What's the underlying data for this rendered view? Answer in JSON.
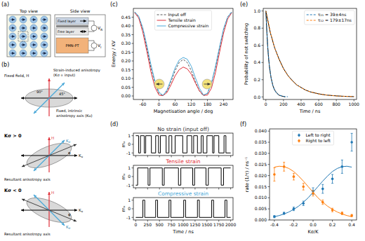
{
  "panel_labels": [
    "(a)",
    "(b)",
    "(c)",
    "(d)",
    "(e)",
    "(f)"
  ],
  "diagrams": {
    "a": {
      "top_view": "Top view",
      "side_view": "Side view",
      "layers": [
        "Fixed layer",
        "Free layer",
        "PMN-PT"
      ],
      "voltages": [
        "VR",
        "VI"
      ]
    },
    "b": {
      "fixed_field": "Fixed field, H",
      "strain_axis": [
        "Strain-induced anisotropy",
        "(Kσ ∝ input)"
      ],
      "angles": [
        "90°",
        "45°"
      ],
      "intrinsic_axis": [
        "Fixed, intrinsic",
        "anisotropy axis (Ku)"
      ],
      "cases": [
        {
          "label": "Kσ > 0",
          "field": "H",
          "strain": "Kσ",
          "intrinsic": "Ku",
          "resultant": "Resultant anisotropy axis",
          "angle": "φ"
        },
        {
          "label": "Kσ < 0",
          "field": "H",
          "strain": "Kσ",
          "intrinsic": "Ku",
          "resultant": "Resultant anisotropy axis",
          "angle": "φ"
        }
      ]
    }
  },
  "chart_data": [
    {
      "type": "line",
      "x_label": "Magnetisation angle / deg",
      "y_label": "Energy / KV",
      "x": [
        -90,
        -75,
        -60,
        -45,
        -30,
        -15,
        0,
        15,
        30,
        45,
        60,
        75,
        90,
        105,
        120,
        135,
        150,
        165,
        180,
        195,
        210,
        225,
        240,
        255,
        270
      ],
      "xlim": [
        -95,
        275
      ],
      "xticks": [
        -60,
        0,
        60,
        120,
        180,
        240
      ],
      "ylim": [
        -0.02,
        0.5
      ],
      "yticks": [
        {
          "value": 0,
          "label": "0.00"
        },
        0.05,
        {
          "value": 0.1,
          "label": "0.10"
        },
        0.15,
        {
          "value": 0.2,
          "label": "0.20"
        },
        0.25,
        {
          "value": 0.3,
          "label": "0.30"
        },
        0.35,
        {
          "value": 0.4,
          "label": "0.40"
        },
        0.45
      ],
      "legend": "upper center",
      "series": [
        {
          "name": "Input off",
          "color": "#555555",
          "line_style": "dashed",
          "values": [
            0.479,
            0.452,
            0.379,
            0.275,
            0.164,
            0.071,
            0.014,
            0.001,
            0.029,
            0.083,
            0.144,
            0.191,
            0.209,
            0.191,
            0.144,
            0.083,
            0.029,
            0.001,
            0.014,
            0.071,
            0.164,
            0.275,
            0.379,
            0.452,
            0.479
          ]
        },
        {
          "name": "Tensile strain",
          "color": "#e0303a",
          "values": [
            0.475,
            0.445,
            0.365,
            0.255,
            0.14,
            0.05,
            0.005,
            0.002,
            0.02,
            0.065,
            0.115,
            0.15,
            0.165,
            0.155,
            0.125,
            0.075,
            0.03,
            0.004,
            0.005,
            0.045,
            0.135,
            0.25,
            0.36,
            0.44,
            0.475
          ]
        },
        {
          "name": "Compressive strain",
          "color": "#4aa8d8",
          "values": [
            0.48,
            0.455,
            0.39,
            0.29,
            0.18,
            0.085,
            0.022,
            0.003,
            0.035,
            0.095,
            0.16,
            0.205,
            0.22,
            0.21,
            0.17,
            0.105,
            0.045,
            0.006,
            0.015,
            0.075,
            0.17,
            0.28,
            0.385,
            0.45,
            0.48
          ]
        }
      ]
    },
    {
      "type": "line",
      "title": "No strain (input off)",
      "y_label": "mₓ",
      "tick_labels": "y",
      "x": [
        0,
        60,
        60,
        100,
        100,
        180,
        180,
        210,
        210,
        330,
        330,
        420,
        420,
        480,
        480,
        520,
        520,
        640,
        640,
        700,
        700,
        760,
        760,
        830,
        830,
        990,
        990,
        1080,
        1080,
        1180,
        1180,
        1220,
        1220,
        1300,
        1300,
        1380,
        1380,
        1420,
        1420,
        1500,
        1500,
        1620,
        1620,
        1650,
        1650,
        1750,
        1750,
        1860,
        1860,
        1900,
        1900,
        2000
      ],
      "xlim": [
        -50,
        2050
      ],
      "xticks": [
        0,
        250,
        500,
        750,
        1000,
        1250,
        1500,
        1750,
        2000
      ],
      "ylim": [
        -1.3,
        1.3
      ],
      "yticks": [
        -1,
        0,
        1
      ],
      "series": [
        {
          "color": "#000000",
          "values": [
            1,
            1,
            -1,
            -1,
            1,
            1,
            -1,
            -1,
            1,
            1,
            -1,
            -1,
            1,
            1,
            -1,
            -1,
            1,
            1,
            -1,
            -1,
            1,
            1,
            -1,
            -1,
            1,
            1,
            -1,
            -1,
            1,
            1,
            -1,
            -1,
            1,
            1,
            -1,
            -1,
            1,
            1,
            -1,
            -1,
            1,
            1,
            -1,
            -1,
            1,
            1,
            -1,
            -1,
            1,
            1,
            -1,
            -1
          ]
        }
      ]
    },
    {
      "type": "line",
      "title": "Tensile strain",
      "y_label": "mₓ",
      "tick_labels": "y",
      "x": [
        0,
        40,
        40,
        260,
        260,
        300,
        300,
        560,
        560,
        600,
        600,
        900,
        900,
        950,
        950,
        1200,
        1200,
        1240,
        1240,
        1480,
        1480,
        1530,
        1530,
        1800,
        1800,
        1850,
        1850,
        2000
      ],
      "xlim": [
        -50,
        2050
      ],
      "xticks": [
        0,
        250,
        500,
        750,
        1000,
        1250,
        1500,
        1750,
        2000
      ],
      "ylim": [
        -1.3,
        1.3
      ],
      "yticks": [
        -1,
        0,
        1
      ],
      "series": [
        {
          "color": "#000000",
          "values": [
            -1,
            -1,
            1,
            1,
            -1,
            -1,
            1,
            1,
            -1,
            -1,
            1,
            1,
            -1,
            -1,
            1,
            1,
            -1,
            -1,
            1,
            1,
            -1,
            -1,
            1,
            1,
            -1,
            -1,
            1,
            1
          ]
        }
      ]
    },
    {
      "type": "line",
      "title": "Compressive strain",
      "y_label": "mₓ",
      "x_label": "Time / ns",
      "x": [
        0,
        150,
        150,
        190,
        190,
        420,
        420,
        460,
        460,
        700,
        700,
        740,
        740,
        1010,
        1010,
        1050,
        1050,
        1300,
        1300,
        1340,
        1340,
        1600,
        1600,
        1640,
        1640,
        1880,
        1880,
        1920,
        1920,
        2000
      ],
      "xlim": [
        -50,
        2050
      ],
      "xticks": [
        0,
        250,
        500,
        750,
        1000,
        1250,
        1500,
        1750,
        2000
      ],
      "ylim": [
        -1.3,
        1.3
      ],
      "yticks": [
        -1,
        0,
        1
      ],
      "series": [
        {
          "color": "#000000",
          "values": [
            -1,
            -1,
            1,
            1,
            -1,
            -1,
            1,
            1,
            -1,
            -1,
            1,
            1,
            -1,
            -1,
            1,
            1,
            -1,
            -1,
            1,
            1,
            -1,
            -1,
            1,
            1,
            -1,
            -1,
            1,
            1,
            -1,
            -1
          ]
        }
      ]
    },
    {
      "type": "line",
      "x_label": "Time / ns",
      "y_label": "Probability of not switching",
      "xlim": [
        -30,
        1030
      ],
      "xticks": [
        0,
        200,
        400,
        600,
        800,
        1000
      ],
      "ylim": [
        -0.03,
        1.03
      ],
      "yticks": [
        {
          "value": 0,
          "label": "0.0"
        },
        0.2,
        0.4,
        0.6,
        0.8,
        {
          "value": 1,
          "label": "1.0"
        }
      ],
      "legend": "upper right",
      "series": [
        {
          "color": "#000000",
          "x": [
            0,
            10,
            20,
            30,
            40,
            50,
            60,
            80,
            100,
            120,
            150,
            180,
            220
          ],
          "values": [
            1,
            0.78,
            0.6,
            0.46,
            0.36,
            0.28,
            0.22,
            0.13,
            0.08,
            0.05,
            0.02,
            0.01,
            0
          ]
        },
        {
          "color": "#000000",
          "x": [
            0,
            50,
            100,
            150,
            200,
            250,
            300,
            350,
            400,
            450,
            500,
            600,
            700,
            800,
            900,
            1000
          ],
          "values": [
            1,
            0.75,
            0.57,
            0.44,
            0.33,
            0.25,
            0.19,
            0.14,
            0.11,
            0.08,
            0.06,
            0.035,
            0.02,
            0.012,
            0.006,
            0.003
          ]
        },
        {
          "name": "τ₂₁ = 39±4ns",
          "color": "#1f77b4",
          "line_style": "dashed",
          "x": [
            0,
            20,
            40,
            60,
            80,
            100,
            120,
            150,
            200,
            250
          ],
          "values": [
            1,
            0.599,
            0.358,
            0.215,
            0.129,
            0.077,
            0.046,
            0.021,
            0.006,
            0.002
          ]
        },
        {
          "name": "τ₁₂ = 179±17ns",
          "color": "#ff7f0e",
          "line_style": "dashed",
          "x": [
            0,
            50,
            100,
            150,
            200,
            250,
            300,
            350,
            400,
            450,
            500,
            600,
            700,
            800,
            900,
            1000
          ],
          "values": [
            1,
            0.756,
            0.572,
            0.433,
            0.327,
            0.247,
            0.187,
            0.142,
            0.107,
            0.081,
            0.061,
            0.035,
            0.02,
            0.011,
            0.007,
            0.004
          ]
        }
      ]
    },
    {
      "type": "scatter",
      "x_label": "Kσ/K",
      "y_label": "rate (1/τ) / ns⁻¹",
      "xlim": [
        -0.45,
        0.45
      ],
      "xticks": [
        -0.4,
        -0.2,
        {
          "value": 0,
          "label": "0.0"
        },
        0.2,
        0.4
      ],
      "ylim": [
        0,
        0.041
      ],
      "yticks": [
        {
          "value": 0,
          "label": "0.000"
        },
        0.005,
        {
          "value": 0.01,
          "label": "0.010"
        },
        0.015,
        {
          "value": 0.02,
          "label": "0.020"
        },
        0.025,
        {
          "value": 0.03,
          "label": "0.030"
        },
        0.035,
        {
          "value": 0.04,
          "label": "0.040"
        }
      ],
      "legend": "upper center",
      "series": [
        {
          "type": "line",
          "color": "#1f77b4",
          "x": [
            -0.4,
            -0.35,
            -0.3,
            -0.25,
            -0.2,
            -0.15,
            -0.1,
            -0.05,
            0,
            0.05,
            0.1,
            0.15,
            0.2,
            0.25,
            0.3,
            0.35,
            0.4
          ],
          "values": [
            0.0015,
            0.002,
            0.0027,
            0.0036,
            0.0048,
            0.0062,
            0.008,
            0.01,
            0.0125,
            0.015,
            0.0175,
            0.0198,
            0.0218,
            0.0232,
            0.024,
            0.0242,
            0.0238
          ]
        },
        {
          "type": "line",
          "color": "#ff7f0e",
          "x": [
            -0.4,
            -0.35,
            -0.3,
            -0.25,
            -0.2,
            -0.15,
            -0.1,
            -0.05,
            0,
            0.05,
            0.1,
            0.15,
            0.2,
            0.25,
            0.3,
            0.35,
            0.4
          ],
          "values": [
            0.0238,
            0.0242,
            0.024,
            0.0232,
            0.0218,
            0.0198,
            0.0175,
            0.015,
            0.0125,
            0.01,
            0.008,
            0.0062,
            0.0048,
            0.0036,
            0.0027,
            0.002,
            0.0015
          ]
        },
        {
          "name": "Left to right",
          "color": "#1f77b4",
          "marker": "circle",
          "x": [
            -0.4,
            -0.3,
            -0.2,
            -0.1,
            0,
            0.1,
            0.2,
            0.3,
            0.4
          ],
          "values": [
            0.0015,
            0.003,
            0.005,
            0.0075,
            0.013,
            0.014,
            0.0185,
            0.024,
            0.035
          ],
          "errors": [
            0.0005,
            0.0005,
            0.0008,
            0.001,
            0.0015,
            0.002,
            0.002,
            0.003,
            0.004
          ]
        },
        {
          "name": "Right to left",
          "color": "#ff7f0e",
          "marker": "circle",
          "x": [
            -0.4,
            -0.3,
            -0.2,
            -0.1,
            0,
            0.1,
            0.2,
            0.3,
            0.4
          ],
          "values": [
            0.0205,
            0.024,
            0.0195,
            0.015,
            0.012,
            0.008,
            0.0045,
            0.003,
            0.002
          ],
          "errors": [
            0.003,
            0.002,
            0.0015,
            0.0015,
            0.0012,
            0.001,
            0.0008,
            0.0006,
            0.0005
          ]
        }
      ]
    }
  ]
}
